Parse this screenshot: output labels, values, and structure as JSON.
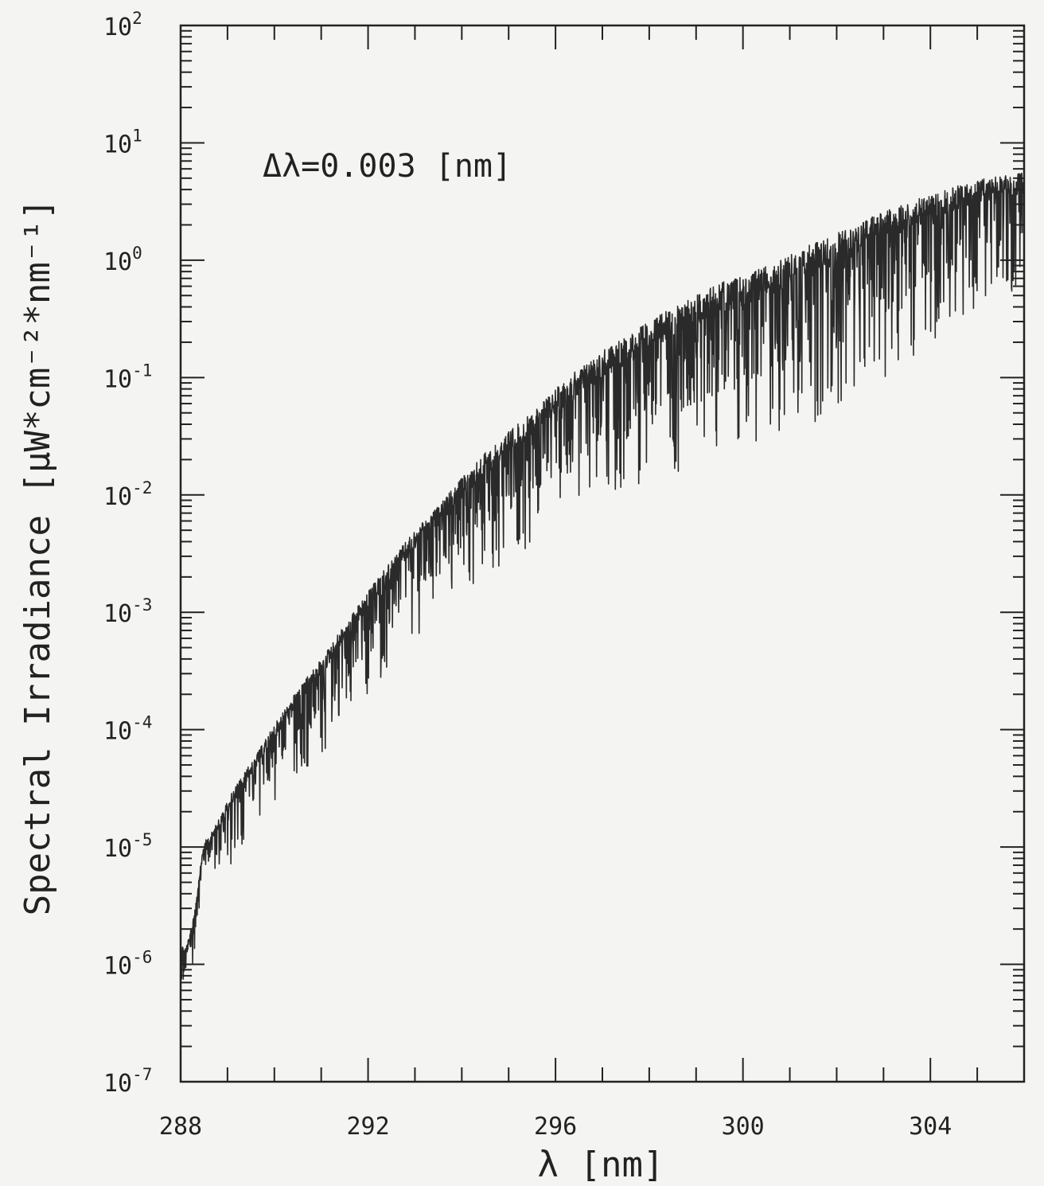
{
  "chart_data": {
    "type": "line",
    "title": "",
    "xlabel": "λ [nm]",
    "ylabel": "Spectral Irradiance [µW*cm⁻²*nm⁻¹]",
    "annotation": "Δλ=0.003 [nm]",
    "xlim": [
      288,
      306
    ],
    "ylim": [
      1e-07,
      100
    ],
    "yscale": "log",
    "grid": false,
    "legend": "none",
    "line_color": "#2a2a2a",
    "x_ticks": [
      {
        "value": 288,
        "label": "288"
      },
      {
        "value": 292,
        "label": "292"
      },
      {
        "value": 296,
        "label": "296"
      },
      {
        "value": 300,
        "label": "300"
      },
      {
        "value": 304,
        "label": "304"
      }
    ],
    "y_ticks": [
      {
        "value": 100.0,
        "base": "10",
        "exp": "2"
      },
      {
        "value": 10.0,
        "base": "10",
        "exp": "1"
      },
      {
        "value": 1.0,
        "base": "10",
        "exp": "0"
      },
      {
        "value": 0.1,
        "base": "10",
        "exp": "-1"
      },
      {
        "value": 0.01,
        "base": "10",
        "exp": "-2"
      },
      {
        "value": 0.001,
        "base": "10",
        "exp": "-3"
      },
      {
        "value": 0.0001,
        "base": "10",
        "exp": "-4"
      },
      {
        "value": 1e-05,
        "base": "10",
        "exp": "-5"
      },
      {
        "value": 1e-06,
        "base": "10",
        "exp": "-6"
      },
      {
        "value": 1e-07,
        "base": "10",
        "exp": "-7"
      }
    ],
    "series": [
      {
        "x": [
          288.0,
          288.1,
          288.2,
          288.3,
          288.4,
          288.5,
          288.7,
          289.0,
          289.3,
          289.6,
          290.0,
          290.5,
          291.0,
          291.5,
          292.0,
          292.5,
          293.0,
          293.5,
          294.0,
          294.5,
          295.0,
          295.5,
          296.0,
          296.5,
          297.0,
          297.5,
          298.0,
          298.5,
          299.0,
          299.5,
          300.0,
          300.5,
          301.0,
          301.5,
          302.0,
          302.5,
          303.0,
          303.5,
          304.0,
          304.5,
          305.0,
          305.5,
          306.0
        ],
        "y": [
          1.5e-06,
          1.4e-06,
          1.8e-06,
          3e-06,
          6e-06,
          1.1e-05,
          1.4e-05,
          2.5e-05,
          4e-05,
          6e-05,
          0.00011,
          0.00022,
          0.0004,
          0.0008,
          0.0015,
          0.0028,
          0.005,
          0.008,
          0.014,
          0.023,
          0.035,
          0.05,
          0.08,
          0.12,
          0.17,
          0.22,
          0.3,
          0.4,
          0.5,
          0.65,
          0.75,
          0.9,
          1.1,
          1.4,
          1.7,
          2.1,
          2.6,
          3.1,
          3.6,
          4.2,
          4.8,
          5.3,
          5.6
        ],
        "min_y": [
          5e-07,
          4e-07,
          6e-07,
          1.2e-06,
          3e-06,
          5e-06,
          6e-06,
          6e-06,
          1e-05,
          1.5e-05,
          2.2e-05,
          4e-05,
          6e-05,
          0.00012,
          0.0002,
          0.00035,
          0.0006,
          0.001,
          0.0014,
          0.002,
          0.0025,
          0.004,
          0.006,
          0.005,
          0.008,
          0.01,
          0.013,
          0.015,
          0.018,
          0.02,
          0.025,
          0.03,
          0.035,
          0.04,
          0.05,
          0.08,
          0.1,
          0.13,
          0.2,
          0.3,
          0.4,
          0.5,
          0.5
        ]
      }
    ]
  }
}
